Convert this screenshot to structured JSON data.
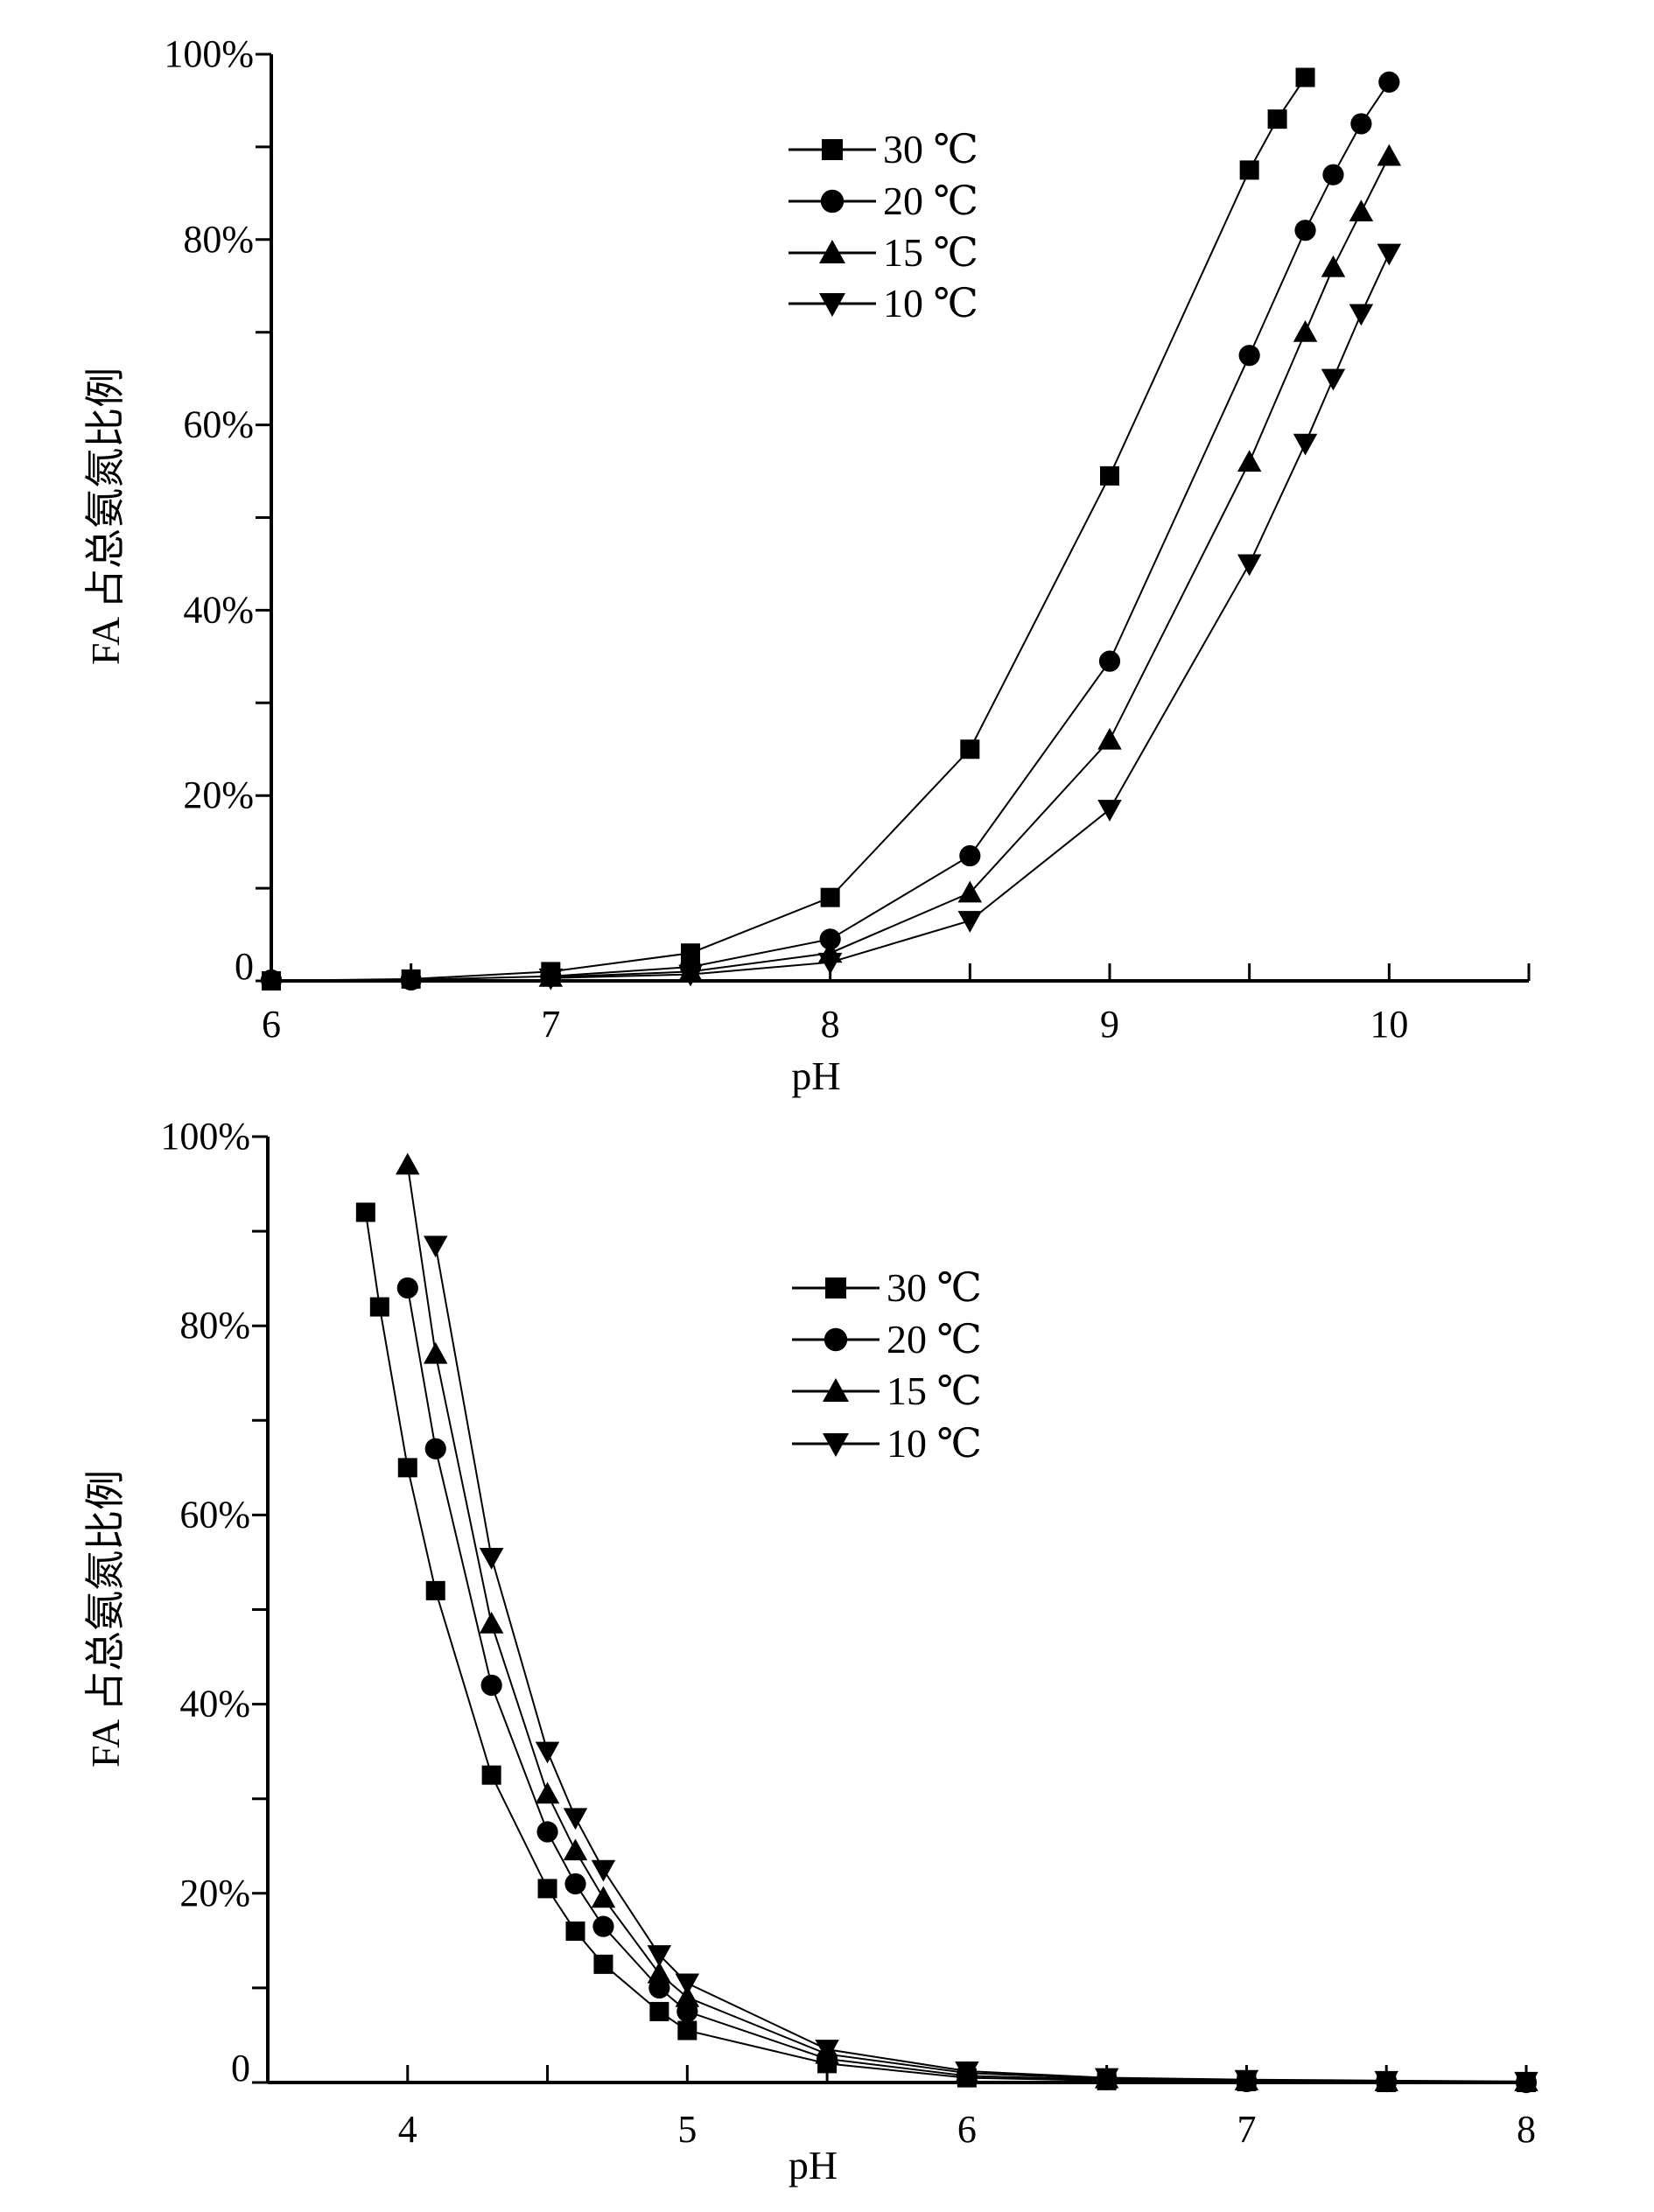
{
  "chart_data": [
    {
      "type": "line",
      "title": "",
      "xlabel": "pH",
      "ylabel": "FA 占总氨氮比例",
      "xlim": [
        6,
        10.5
      ],
      "ylim": [
        0,
        100
      ],
      "xticks": [
        6,
        7,
        8,
        9,
        10
      ],
      "yticks": [
        0,
        20,
        40,
        60,
        80,
        100
      ],
      "ytick_labels": [
        "0",
        "20%",
        "40%",
        "60%",
        "80%",
        "100%"
      ],
      "grid": false,
      "legend_position": "top-center",
      "series": [
        {
          "name": "30 ℃",
          "marker": "square",
          "x": [
            6,
            6.5,
            7,
            7.5,
            8,
            8.5,
            9,
            9.5,
            9.6,
            9.7
          ],
          "y": [
            0,
            0.2,
            1,
            3,
            9,
            25,
            54.5,
            87.5,
            93,
            97.5
          ]
        },
        {
          "name": "20 ℃",
          "marker": "circle",
          "x": [
            6,
            6.5,
            7,
            7.5,
            8,
            8.5,
            9,
            9.5,
            9.7,
            9.8,
            9.9,
            10
          ],
          "y": [
            0.1,
            0.1,
            0.5,
            1.5,
            4.5,
            13.5,
            34.5,
            67.5,
            81,
            87,
            92.5,
            97
          ]
        },
        {
          "name": "15 ℃",
          "marker": "triangle-up",
          "x": [
            7,
            7.5,
            8,
            8.5,
            9,
            9.5,
            9.7,
            9.8,
            9.9,
            10
          ],
          "y": [
            0.4,
            1,
            3,
            9.5,
            26,
            56,
            70,
            77,
            83,
            89
          ]
        },
        {
          "name": "10 ℃",
          "marker": "triangle-down",
          "x": [
            7,
            7.5,
            8,
            8.5,
            9,
            9.5,
            9.7,
            9.8,
            9.9,
            10
          ],
          "y": [
            0.3,
            0.7,
            2,
            6.5,
            18.5,
            45,
            58,
            65,
            72,
            78.5
          ]
        }
      ]
    },
    {
      "type": "line",
      "title": "",
      "xlabel": "pH",
      "ylabel": "FA 占总氨氮比例",
      "xlim": [
        3.5,
        8
      ],
      "ylim": [
        0,
        100
      ],
      "xticks": [
        4,
        5,
        6,
        7,
        8
      ],
      "yticks": [
        0,
        20,
        40,
        60,
        80,
        100
      ],
      "ytick_labels": [
        "0",
        "20%",
        "40%",
        "60%",
        "80%",
        "100%"
      ],
      "grid": false,
      "legend_position": "top-center",
      "series": [
        {
          "name": "30 ℃",
          "marker": "square",
          "x": [
            3.85,
            3.9,
            4,
            4.1,
            4.3,
            4.5,
            4.6,
            4.7,
            4.9,
            5,
            5.5,
            6,
            6.5,
            7,
            7.5,
            8
          ],
          "y": [
            92,
            82,
            65,
            52,
            32.5,
            20.5,
            16,
            12.5,
            7.5,
            5.5,
            2,
            0.5,
            0.2,
            0.1,
            0,
            0
          ]
        },
        {
          "name": "20 ℃",
          "marker": "circle",
          "x": [
            4,
            4.1,
            4.3,
            4.5,
            4.6,
            4.7,
            4.9,
            5,
            5.5,
            6,
            6.5,
            7,
            7.5,
            8
          ],
          "y": [
            84,
            67,
            42,
            26.5,
            21,
            16.5,
            10,
            7.5,
            2.5,
            0.7,
            0.3,
            0.1,
            0.1,
            0
          ]
        },
        {
          "name": "15 ℃",
          "marker": "triangle-up",
          "x": [
            4,
            4.1,
            4.3,
            4.5,
            4.6,
            4.7,
            4.9,
            5,
            5.5,
            6,
            6.5,
            7,
            7.5,
            8
          ],
          "y": [
            97,
            77,
            48.5,
            30.5,
            24.5,
            19.5,
            11.5,
            9,
            3,
            1,
            0.4,
            0.2,
            0.1,
            0.1
          ]
        },
        {
          "name": "10 ℃",
          "marker": "triangle-down",
          "x": [
            4.1,
            4.3,
            4.5,
            4.6,
            4.7,
            4.9,
            5,
            5.5,
            6,
            6.5,
            7,
            7.5,
            8
          ],
          "y": [
            88.5,
            55.5,
            35,
            28,
            22.5,
            13.5,
            10.5,
            3.5,
            1.2,
            0.5,
            0.3,
            0.2,
            0.1
          ]
        }
      ]
    }
  ]
}
